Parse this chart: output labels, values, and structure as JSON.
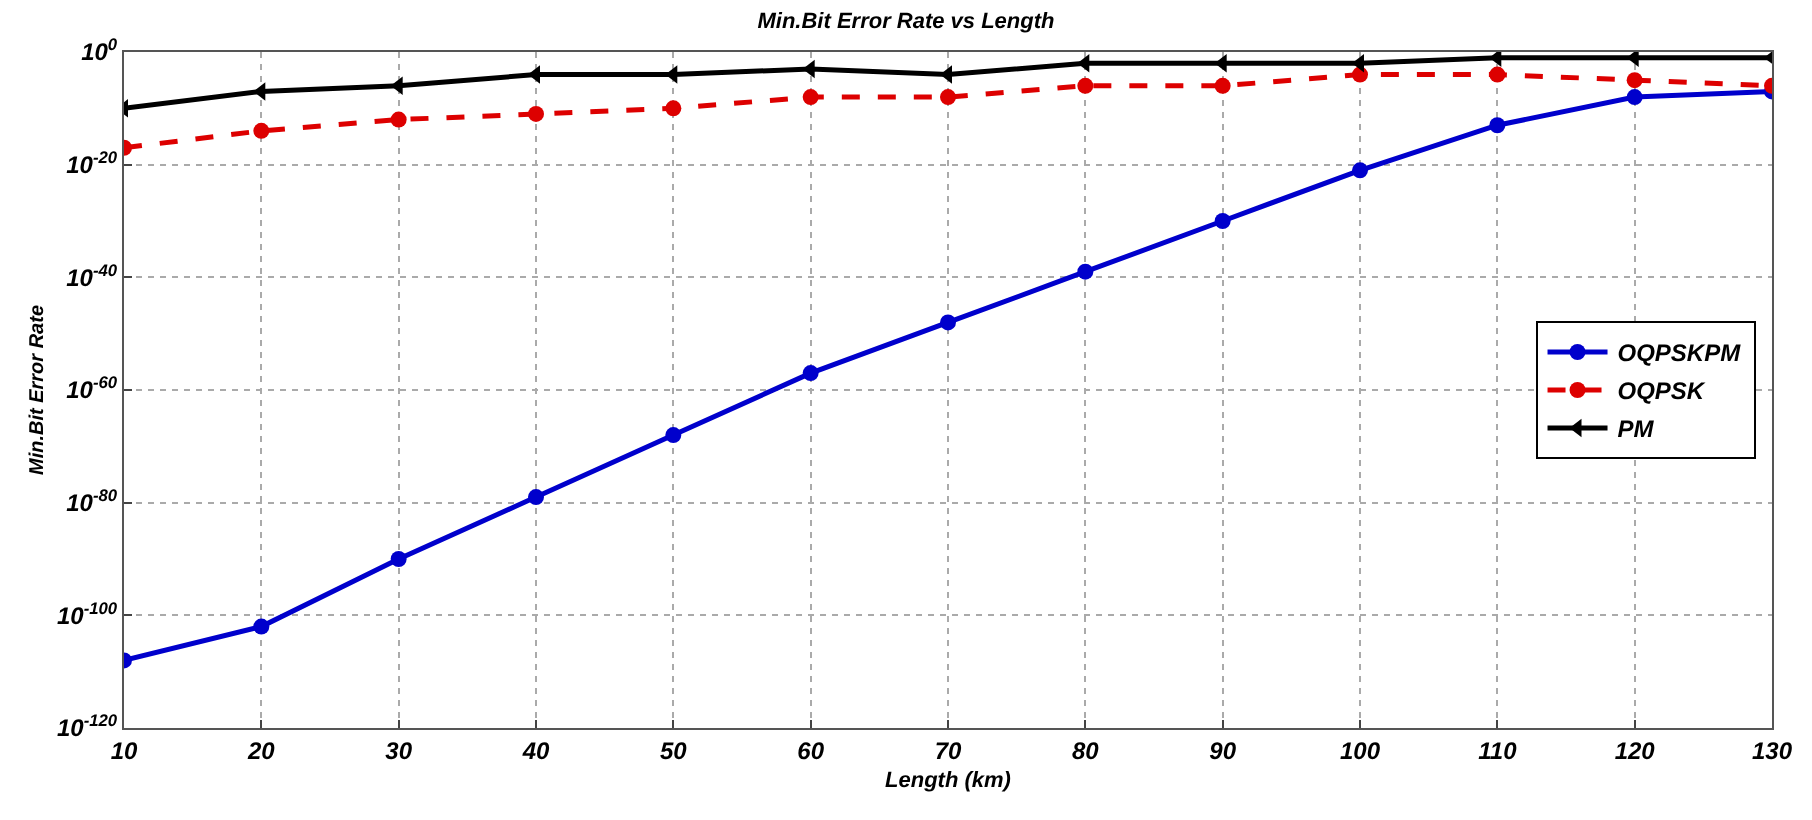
{
  "chart_data": {
    "type": "line",
    "title": "Min.Bit Error Rate vs Length",
    "xlabel": "Length (km)",
    "ylabel": "Min.Bit Error Rate",
    "x": [
      10,
      20,
      30,
      40,
      50,
      60,
      70,
      80,
      90,
      100,
      110,
      120,
      130
    ],
    "series": [
      {
        "name": "OQPSKPM",
        "color": "#0000cc",
        "marker": "circle",
        "line_style": "solid",
        "values": [
          1e-108,
          1e-102,
          1e-90,
          1e-79,
          1e-68,
          1e-57,
          1e-48,
          1e-39,
          1e-30,
          1e-21,
          1e-13,
          1e-08,
          1e-07
        ]
      },
      {
        "name": "OQPSK",
        "color": "#dd0000",
        "marker": "circle",
        "line_style": "dashed",
        "values": [
          1e-17,
          1e-14,
          1e-12,
          1e-11,
          1e-10,
          1e-08,
          1e-08,
          1e-06,
          1e-06,
          0.0001,
          0.0001,
          1e-05,
          1e-06
        ]
      },
      {
        "name": "PM",
        "color": "#000000",
        "marker": "triangle",
        "line_style": "solid",
        "values": [
          1e-10,
          1e-07,
          1e-06,
          0.0001,
          0.0001,
          0.001,
          0.0001,
          0.01,
          0.01,
          0.01,
          0.1,
          0.1,
          0.1
        ]
      }
    ],
    "log": "y",
    "xlim": [
      10,
      130
    ],
    "xticks": [
      10,
      20,
      30,
      40,
      50,
      60,
      70,
      80,
      90,
      100,
      110,
      120,
      130
    ],
    "ylim": [
      1e-120,
      1
    ],
    "yticks": [
      {
        "value": 1e-120,
        "label": "10$^{-120}$"
      },
      {
        "value": 1e-100,
        "label": "10$^{-100}$"
      },
      {
        "value": 1e-80,
        "label": "10$^{-80}$"
      },
      {
        "value": 1e-60,
        "label": "10$^{-60}$"
      },
      {
        "value": 1e-40,
        "label": "10$^{-40}$"
      },
      {
        "value": 1e-20,
        "label": "10$^{-20}$"
      },
      {
        "value": 1,
        "label": "10$^{0}$"
      }
    ],
    "grid": true,
    "legend": "right"
  }
}
